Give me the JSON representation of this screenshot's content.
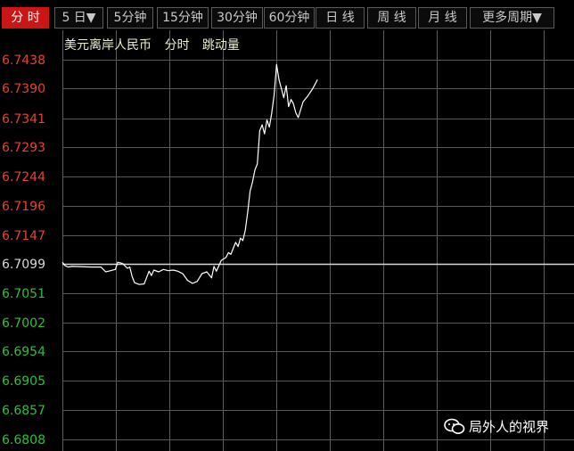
{
  "toolbar": {
    "tabs": [
      {
        "label": "分 时",
        "active": true
      },
      {
        "label": "5 日▼",
        "active": false
      },
      {
        "label": "5分钟",
        "active": false
      },
      {
        "label": "15分钟",
        "active": false
      },
      {
        "label": "30分钟",
        "active": false
      },
      {
        "label": "60分钟",
        "active": false
      },
      {
        "label": "日 线",
        "active": false
      },
      {
        "label": "周 线",
        "active": false
      },
      {
        "label": "月 线",
        "active": false
      },
      {
        "label": "更多周期▼",
        "active": false
      }
    ]
  },
  "info": {
    "instrument": "美元离岸人民币",
    "mode": "分时",
    "indicator": "跳动量"
  },
  "colors": {
    "up": "#e8412f",
    "down": "#2fbf3a",
    "ref": "#d8d8d8",
    "line": "#ffffff",
    "grid": "#5a5a5a",
    "active_tab": "#cc1515"
  },
  "chart_data": {
    "type": "line",
    "title": "",
    "xlabel": "",
    "ylabel": "",
    "ylim": [
      6.6808,
      6.7438
    ],
    "y_ticks": [
      "6.7438",
      "6.7390",
      "6.7341",
      "6.7293",
      "6.7244",
      "6.7196",
      "6.7147",
      "6.7099",
      "6.7051",
      "6.7002",
      "6.6954",
      "6.6905",
      "6.6857",
      "6.6808"
    ],
    "reference_value": 6.7099,
    "grid": true,
    "session_fraction_max": 1.0,
    "series": [
      {
        "x": [
          0,
          0.006,
          0.012,
          0.02,
          0.06,
          0.08,
          0.09,
          0.1,
          0.11,
          0.115,
          0.125,
          0.135,
          0.14,
          0.145,
          0.15,
          0.16,
          0.17,
          0.18,
          0.185,
          0.19,
          0.2,
          0.21,
          0.22,
          0.23,
          0.24,
          0.25,
          0.26,
          0.27,
          0.28,
          0.29,
          0.3,
          0.31,
          0.315,
          0.32,
          0.33,
          0.34,
          0.345,
          0.35,
          0.355,
          0.36,
          0.365,
          0.37,
          0.375,
          0.38,
          0.385,
          0.39,
          0.395,
          0.4,
          0.405,
          0.41,
          0.415,
          0.42,
          0.425,
          0.43,
          0.435,
          0.44,
          0.445,
          0.45,
          0.455,
          0.46,
          0.465,
          0.47,
          0.475,
          0.48,
          0.485,
          0.49,
          0.5,
          0.51,
          0.52,
          0.53
        ],
        "y": [
          6.7102,
          6.7096,
          6.7094,
          6.7095,
          6.7094,
          6.7094,
          6.7086,
          6.7088,
          6.709,
          6.7102,
          6.71,
          6.7092,
          6.7094,
          6.7078,
          6.7068,
          6.7065,
          6.7066,
          6.7087,
          6.708,
          6.7089,
          6.7086,
          6.709,
          6.7088,
          6.7089,
          6.7087,
          6.7083,
          6.7072,
          6.7067,
          6.707,
          6.7083,
          6.7086,
          6.7076,
          6.7095,
          6.7087,
          6.7105,
          6.711,
          6.7118,
          6.7115,
          6.7125,
          6.7135,
          6.7128,
          6.7142,
          6.7138,
          6.7155,
          6.7185,
          6.722,
          6.7235,
          6.7255,
          6.7265,
          6.732,
          6.733,
          6.7315,
          6.7338,
          6.7326,
          6.735,
          6.738,
          6.743,
          6.7405,
          6.739,
          6.7375,
          6.7395,
          6.736,
          6.7372,
          6.7365,
          6.735,
          6.7342,
          6.7368,
          6.7378,
          6.739,
          6.7405
        ]
      }
    ]
  },
  "watermark": {
    "text": "局外人的视界"
  }
}
